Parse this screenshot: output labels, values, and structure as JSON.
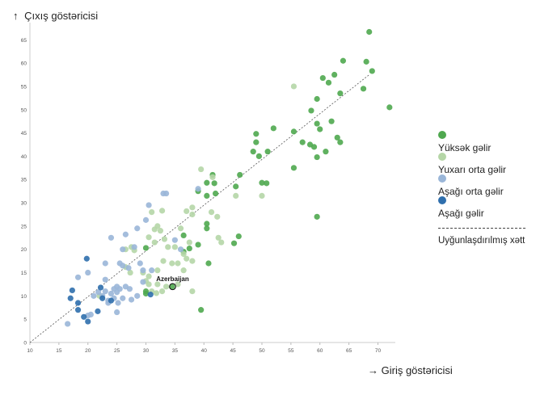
{
  "chart_data": {
    "type": "scatter",
    "ylabel": "Çıxış göstəricisi",
    "xlabel": "Giriş göstəricisi",
    "ylabel_arrow": "↑",
    "xlabel_arrow": "→",
    "xlim": [
      10,
      73
    ],
    "ylim": [
      0,
      68
    ],
    "xticks": [
      10,
      15,
      20,
      25,
      30,
      35,
      40,
      45,
      50,
      55,
      60,
      65,
      70
    ],
    "yticks": [
      0,
      5,
      10,
      15,
      20,
      25,
      30,
      35,
      40,
      45,
      50,
      55,
      60,
      65
    ],
    "grid": false,
    "legend_position": "right",
    "fit_line": {
      "label": "Uyğunlaşdırılmış xətt",
      "x1": 10,
      "y1": 0,
      "x2": 68.5,
      "y2": 57.5
    },
    "annotation": {
      "label": "Azerbaijan",
      "x": 34.6,
      "y": 12.0
    },
    "series": [
      {
        "name": "Yüksək gəlir",
        "color": "#4fa84f",
        "points": [
          [
            68.5,
            66.7
          ],
          [
            64.0,
            60.5
          ],
          [
            68.0,
            60.3
          ],
          [
            69.0,
            58.3
          ],
          [
            62.5,
            57.5
          ],
          [
            60.5,
            56.8
          ],
          [
            61.5,
            55.8
          ],
          [
            63.5,
            53.5
          ],
          [
            67.5,
            54.5
          ],
          [
            59.5,
            52.3
          ],
          [
            72.0,
            50.5
          ],
          [
            58.5,
            49.8
          ],
          [
            62.0,
            47.5
          ],
          [
            59.5,
            47.0
          ],
          [
            60.0,
            45.8
          ],
          [
            52.0,
            46.0
          ],
          [
            55.5,
            45.3
          ],
          [
            49.0,
            44.8
          ],
          [
            63.0,
            44.0
          ],
          [
            63.5,
            43.0
          ],
          [
            57.0,
            43.0
          ],
          [
            58.3,
            42.5
          ],
          [
            49.0,
            43.0
          ],
          [
            59.0,
            42.0
          ],
          [
            61.0,
            41.0
          ],
          [
            48.5,
            41.0
          ],
          [
            51.0,
            41.0
          ],
          [
            49.5,
            40.0
          ],
          [
            59.5,
            39.8
          ],
          [
            55.5,
            37.5
          ],
          [
            50.0,
            34.3
          ],
          [
            50.8,
            34.2
          ],
          [
            46.2,
            36.0
          ],
          [
            45.5,
            33.5
          ],
          [
            41.5,
            36.0
          ],
          [
            41.8,
            34.2
          ],
          [
            40.5,
            34.3
          ],
          [
            39.0,
            32.5
          ],
          [
            42.0,
            32.0
          ],
          [
            40.5,
            31.5
          ],
          [
            59.5,
            27.0
          ],
          [
            40.5,
            25.5
          ],
          [
            40.5,
            24.5
          ],
          [
            36.5,
            23.0
          ],
          [
            46.0,
            22.8
          ],
          [
            45.2,
            21.3
          ],
          [
            39.0,
            21.0
          ],
          [
            37.5,
            20.2
          ],
          [
            36.5,
            19.5
          ],
          [
            40.8,
            17.0
          ],
          [
            39.5,
            7.0
          ],
          [
            30.0,
            11.0
          ],
          [
            30.0,
            10.5
          ],
          [
            34.5,
            12.0
          ],
          [
            30.0,
            20.3
          ]
        ]
      },
      {
        "name": "Yuxarı orta gəlir",
        "color": "#b5d6a7",
        "points": [
          [
            55.5,
            55.0
          ],
          [
            39.5,
            37.2
          ],
          [
            41.5,
            35.5
          ],
          [
            38.0,
            29.0
          ],
          [
            31.0,
            28.0
          ],
          [
            32.8,
            28.3
          ],
          [
            37.0,
            28.2
          ],
          [
            41.3,
            28.0
          ],
          [
            38.0,
            27.5
          ],
          [
            42.3,
            27.0
          ],
          [
            32.0,
            25.0
          ],
          [
            32.5,
            24.0
          ],
          [
            31.5,
            24.3
          ],
          [
            36.0,
            24.5
          ],
          [
            33.2,
            22.2
          ],
          [
            30.5,
            22.6
          ],
          [
            31.5,
            21.5
          ],
          [
            42.5,
            22.5
          ],
          [
            35.0,
            20.5
          ],
          [
            36.5,
            19.0
          ],
          [
            37.5,
            21.5
          ],
          [
            37.0,
            18.0
          ],
          [
            38.0,
            17.5
          ],
          [
            35.5,
            17.0
          ],
          [
            33.0,
            17.5
          ],
          [
            34.5,
            17.0
          ],
          [
            26.5,
            16.2
          ],
          [
            36.5,
            15.5
          ],
          [
            27.3,
            15.0
          ],
          [
            29.5,
            15.0
          ],
          [
            32.0,
            12.5
          ],
          [
            30.5,
            12.5
          ],
          [
            33.5,
            12.0
          ],
          [
            35.5,
            12.5
          ],
          [
            38.0,
            11.0
          ],
          [
            31.8,
            10.6
          ],
          [
            22.0,
            10.0
          ],
          [
            30.5,
            14.2
          ],
          [
            50.0,
            31.5
          ],
          [
            45.5,
            31.5
          ],
          [
            43.0,
            21.5
          ],
          [
            27.5,
            20.5
          ],
          [
            26.5,
            20.0
          ],
          [
            28.0,
            19.8
          ],
          [
            33.8,
            20.5
          ],
          [
            32.8,
            11.0
          ],
          [
            31.0,
            11.0
          ],
          [
            32.0,
            15.5
          ],
          [
            30.0,
            13.2
          ]
        ]
      },
      {
        "name": "Aşağı orta gəlir",
        "color": "#9ab6d8",
        "points": [
          [
            33.5,
            32.0
          ],
          [
            39.0,
            33.0
          ],
          [
            30.5,
            29.5
          ],
          [
            30.0,
            26.3
          ],
          [
            28.5,
            24.5
          ],
          [
            26.5,
            23.2
          ],
          [
            24.0,
            22.5
          ],
          [
            35.0,
            22.0
          ],
          [
            28.0,
            20.5
          ],
          [
            36.0,
            20.0
          ],
          [
            26.0,
            20.0
          ],
          [
            29.0,
            17.0
          ],
          [
            23.0,
            17.0
          ],
          [
            25.5,
            17.0
          ],
          [
            26.0,
            16.5
          ],
          [
            27.0,
            16.0
          ],
          [
            20.0,
            15.0
          ],
          [
            29.5,
            15.5
          ],
          [
            31.0,
            15.5
          ],
          [
            18.3,
            14.0
          ],
          [
            23.0,
            13.5
          ],
          [
            25.0,
            12.0
          ],
          [
            25.5,
            11.5
          ],
          [
            26.5,
            12.0
          ],
          [
            24.5,
            11.5
          ],
          [
            27.2,
            11.5
          ],
          [
            23.0,
            11.0
          ],
          [
            25.0,
            10.8
          ],
          [
            21.8,
            10.8
          ],
          [
            24.0,
            10.5
          ],
          [
            21.0,
            10.0
          ],
          [
            22.5,
            10.0
          ],
          [
            26.0,
            9.5
          ],
          [
            24.5,
            9.5
          ],
          [
            23.5,
            9.0
          ],
          [
            27.5,
            9.2
          ],
          [
            29.5,
            13.0
          ],
          [
            25.2,
            8.5
          ],
          [
            23.5,
            8.5
          ],
          [
            20.5,
            6.0
          ],
          [
            20.0,
            5.8
          ],
          [
            25.0,
            6.5
          ],
          [
            16.5,
            4.0
          ],
          [
            28.5,
            10.0
          ],
          [
            33.0,
            32.0
          ]
        ]
      },
      {
        "name": "Aşağı gəlir",
        "color": "#2f6fad",
        "points": [
          [
            19.8,
            18.0
          ],
          [
            22.2,
            11.8
          ],
          [
            17.3,
            11.2
          ],
          [
            17.0,
            9.5
          ],
          [
            22.5,
            9.5
          ],
          [
            18.3,
            8.5
          ],
          [
            24.0,
            9.0
          ],
          [
            18.3,
            7.0
          ],
          [
            21.7,
            6.7
          ],
          [
            19.3,
            5.5
          ],
          [
            20.0,
            4.5
          ],
          [
            30.8,
            10.3
          ]
        ]
      }
    ]
  }
}
